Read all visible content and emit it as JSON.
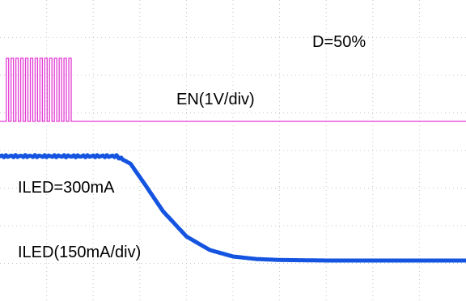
{
  "chart_data": {
    "type": "line",
    "title": "",
    "xlabel": "",
    "ylabel": "",
    "grid": true,
    "grid_divisions": {
      "x": 10,
      "y": 8
    },
    "annotations": {
      "duty": "D=50%",
      "en_scale": "EN(1V/div)",
      "iled_level": "ILED=300mA",
      "iled_scale": "ILED(150mA/div)"
    },
    "series": [
      {
        "name": "EN",
        "color": "#e23bd3",
        "unit": "V",
        "scale_per_div": 1,
        "duty_cycle": 0.5,
        "pulse_count": 14,
        "pulse_start_div": 0.2,
        "pulse_end_div": 2.7,
        "high_level_div": 1.3,
        "low_level_div": 0
      },
      {
        "name": "ILED",
        "color": "#1554e0",
        "unit": "mA",
        "scale_per_div": 150,
        "x_div": [
          0.0,
          0.5,
          1.0,
          1.5,
          2.0,
          2.5,
          2.8,
          3.1,
          3.5,
          4.0,
          4.5,
          5.0,
          5.5,
          6.0,
          7.0,
          8.0,
          9.0,
          10.0
        ],
        "y_mA": [
          300,
          300,
          300,
          300,
          300,
          300,
          285,
          245,
          190,
          140,
          113,
          100,
          95,
          93,
          92,
          92,
          92,
          92
        ]
      }
    ]
  }
}
